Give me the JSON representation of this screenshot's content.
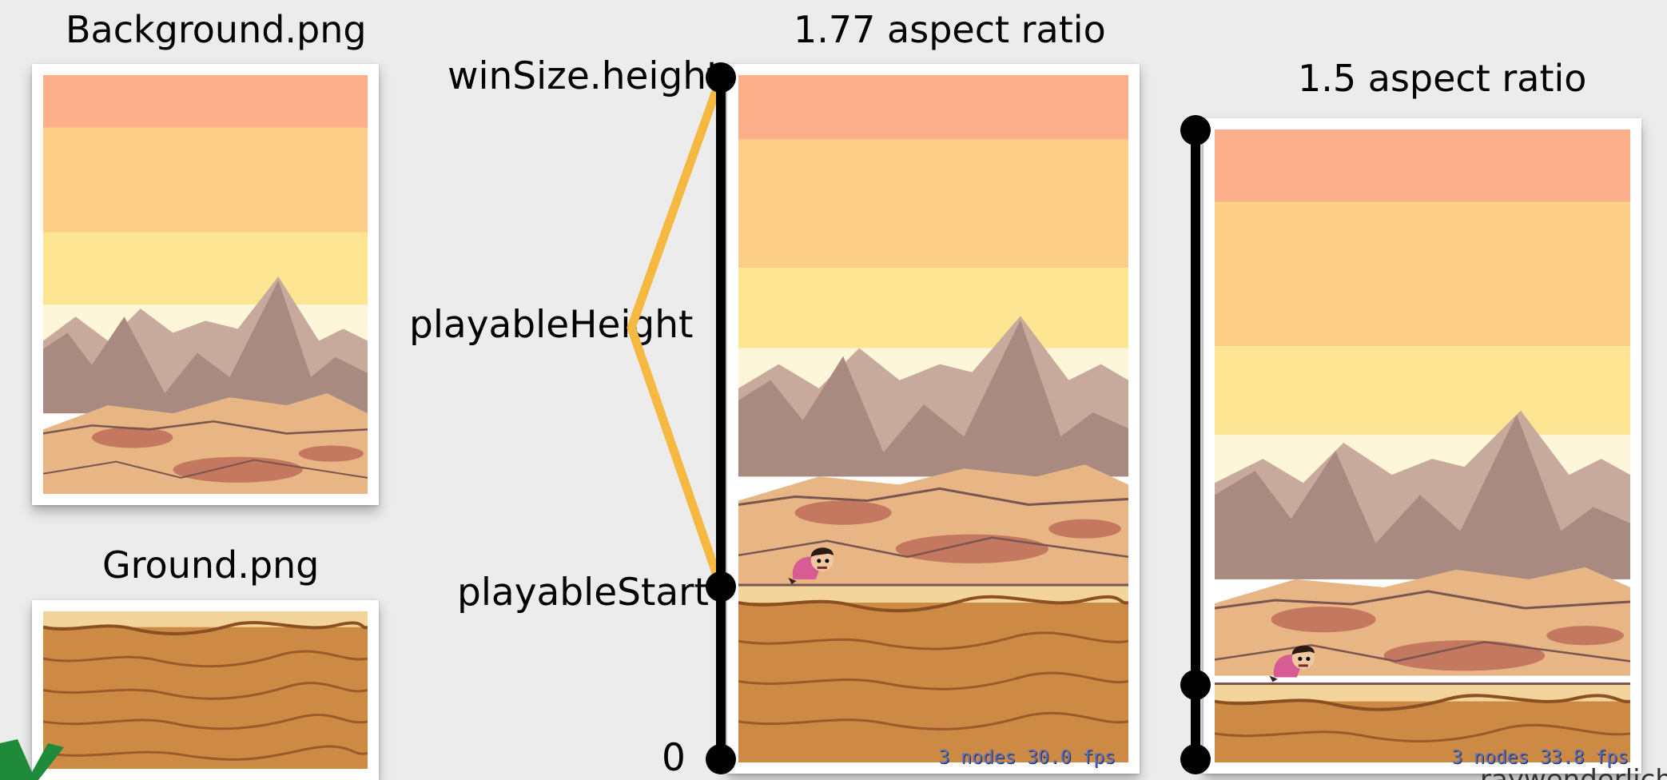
{
  "titles": {
    "background": "Background.png",
    "ground": "Ground.png",
    "ratio_177": "1.77 aspect ratio",
    "ratio_15": "1.5 aspect ratio"
  },
  "labels": {
    "win_height": "winSize.height",
    "playable_height": "playableHeight",
    "playable_start": "playableStart",
    "zero": "0"
  },
  "hud": {
    "fps_177": "3 nodes 30.0 fps",
    "fps_15": "3 nodes 33.8 fps"
  },
  "watermark": "raywenderlich",
  "colors": {
    "sky_top": "#fcaf8a",
    "sky_mid": "#fdce88",
    "sky_low": "#fde594",
    "horizon": "#fef6d8",
    "mountain": "#a88a80",
    "mountain_light": "#c7aa9c",
    "dune": "#e8b684",
    "dune_dark": "#c57860",
    "ground": "#cd8a45",
    "ground_top": "#f3d49a",
    "bracket": "#f5b942",
    "axis": "#000000"
  },
  "icons": [
    "player-sprite-icon",
    "brand-logo-icon"
  ]
}
